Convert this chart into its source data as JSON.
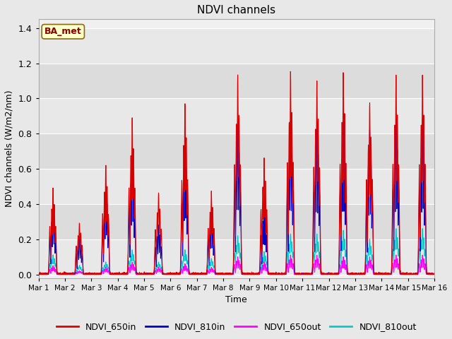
{
  "title": "NDVI channels",
  "xlabel": "Time",
  "ylabel": "NDVI channels (W/m2/nm)",
  "xlim_days": [
    0,
    15
  ],
  "ylim": [
    -0.02,
    1.45
  ],
  "yticks": [
    0.0,
    0.2,
    0.4,
    0.6,
    0.8,
    1.0,
    1.2,
    1.4
  ],
  "xtick_labels": [
    "Mar 1",
    "Mar 2",
    "Mar 3",
    "Mar 4",
    "Mar 5",
    "Mar 6",
    "Mar 7",
    "Mar 8",
    "Mar 9",
    "Mar 10",
    "Mar 11",
    "Mar 12",
    "Mar 13",
    "Mar 14",
    "Mar 15",
    "Mar 16"
  ],
  "color_650in": "#dd0000",
  "color_810in": "#0000cc",
  "color_650out": "#ff00ff",
  "color_810out": "#00cccc",
  "annotation_text": "BA_met",
  "annotation_color": "#8b0000",
  "annotation_bg": "#ffffcc",
  "peak_650in": [
    0.49,
    0.29,
    0.62,
    0.89,
    0.46,
    0.97,
    0.47,
    1.13,
    0.66,
    1.15,
    1.1,
    1.14,
    0.97,
    1.13,
    1.13
  ],
  "peak_810in": [
    0.39,
    0.21,
    0.5,
    0.68,
    0.28,
    0.73,
    0.35,
    0.87,
    0.4,
    0.87,
    0.85,
    0.87,
    0.82,
    0.88,
    0.88
  ],
  "peak_650out": [
    0.05,
    0.02,
    0.04,
    0.07,
    0.04,
    0.06,
    0.04,
    0.1,
    0.07,
    0.11,
    0.11,
    0.1,
    0.1,
    0.11,
    0.11
  ],
  "peak_810out": [
    0.11,
    0.05,
    0.07,
    0.14,
    0.07,
    0.14,
    0.09,
    0.22,
    0.13,
    0.23,
    0.23,
    0.25,
    0.2,
    0.26,
    0.26
  ],
  "background_color": "#e8e8e8",
  "plot_bg": "#f0f0f0",
  "band_colors": [
    "#e8e8e8",
    "#dcdcdc"
  ],
  "grid_color": "#ffffff",
  "linewidth_in": 0.8,
  "linewidth_out": 0.8,
  "figsize": [
    6.4,
    4.8
  ],
  "dpi": 100
}
